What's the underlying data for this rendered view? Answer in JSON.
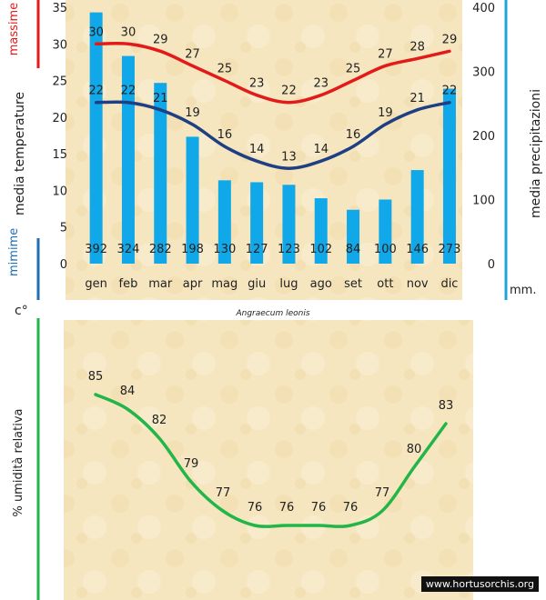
{
  "colors": {
    "max_line": "#e21a1a",
    "min_line": "#1f3f84",
    "bars": "#10a8e8",
    "humidity_line": "#22b548",
    "background": "#f6e6c0",
    "min_accent": "#1f6fb5",
    "precip_accent": "#20a4d8"
  },
  "labels": {
    "species": "Angraecum leonis",
    "massime": "massime",
    "minime": "mimime",
    "media_temperature": "media   temperature",
    "media_precipitazioni": "media   precipitazioni",
    "unit_c": "c°",
    "unit_mm": "mm.",
    "humidity_axis": "% umidità relativa",
    "watermark": "www.hortusorchis.org"
  },
  "chart_data": [
    {
      "type": "bar+line",
      "categories": [
        "gen",
        "feb",
        "mar",
        "apr",
        "mag",
        "giu",
        "lug",
        "ago",
        "set",
        "ott",
        "nov",
        "dic"
      ],
      "series": [
        {
          "name": "massime",
          "type": "line",
          "axis": "left",
          "values": [
            30,
            30,
            29,
            27,
            25,
            23,
            22,
            23,
            25,
            27,
            28,
            29
          ]
        },
        {
          "name": "mimime",
          "type": "line",
          "axis": "left",
          "values": [
            22,
            22,
            21,
            19,
            16,
            14,
            13,
            14,
            16,
            19,
            21,
            22
          ]
        },
        {
          "name": "media precipitazioni",
          "type": "bar",
          "axis": "right",
          "values": [
            392,
            324,
            282,
            198,
            130,
            127,
            123,
            102,
            84,
            100,
            146,
            273
          ]
        }
      ],
      "ylim_left": [
        0,
        35
      ],
      "yticks_left": [
        0,
        5,
        10,
        15,
        20,
        25,
        30,
        35
      ],
      "ylim_right": [
        0,
        400
      ],
      "yticks_right": [
        0,
        100,
        200,
        300,
        400
      ],
      "grid": false
    },
    {
      "type": "line",
      "series": [
        {
          "name": "% umidità relativa",
          "values": [
            85,
            84,
            82,
            79,
            77,
            76,
            76,
            76,
            76,
            77,
            80,
            83
          ]
        }
      ],
      "ylabel": "% umidità relativa",
      "grid": false
    }
  ]
}
